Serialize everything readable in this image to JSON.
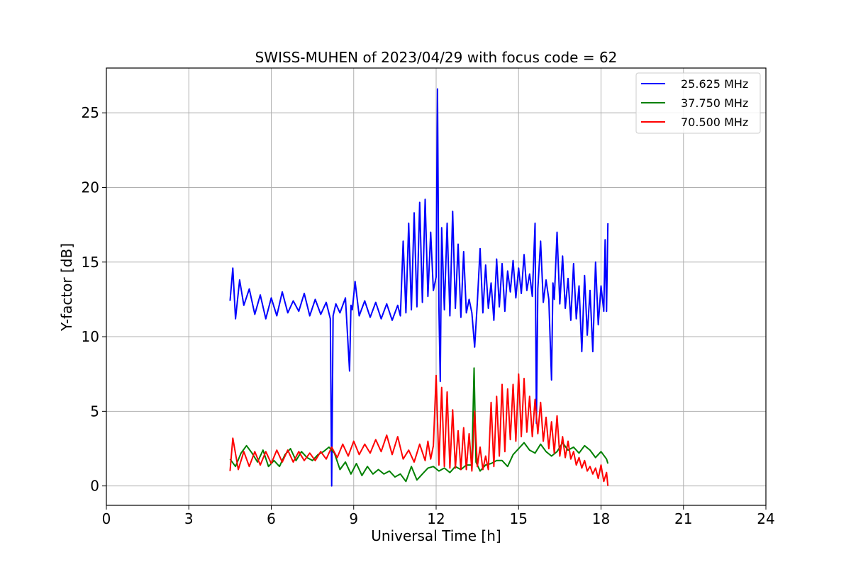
{
  "chart_data": {
    "type": "line",
    "title": "SWISS-MUHEN of 2023/04/29 with focus code = 62",
    "xlabel": "Universal Time [h]",
    "ylabel": "Y-factor [dB]",
    "xlim": [
      0,
      24
    ],
    "ylim": [
      -1.3,
      28
    ],
    "xticks": [
      0,
      3,
      6,
      9,
      12,
      15,
      18,
      21,
      24
    ],
    "yticks": [
      0,
      5,
      10,
      15,
      20,
      25
    ],
    "grid": true,
    "legend_position": "top-right",
    "series": [
      {
        "name": "25.625 MHz",
        "color": "#0000ff",
        "x": [
          4.5,
          4.6,
          4.7,
          4.85,
          5.0,
          5.2,
          5.4,
          5.6,
          5.8,
          6.0,
          6.2,
          6.4,
          6.6,
          6.8,
          7.0,
          7.2,
          7.4,
          7.6,
          7.8,
          8.0,
          8.15,
          8.2,
          8.25,
          8.35,
          8.5,
          8.7,
          8.85,
          8.9,
          8.95,
          9.05,
          9.2,
          9.4,
          9.6,
          9.8,
          10.0,
          10.2,
          10.4,
          10.6,
          10.7,
          10.8,
          10.9,
          11.0,
          11.1,
          11.2,
          11.3,
          11.4,
          11.5,
          11.6,
          11.7,
          11.8,
          11.9,
          12.0,
          12.05,
          12.1,
          12.15,
          12.2,
          12.3,
          12.4,
          12.5,
          12.6,
          12.7,
          12.8,
          12.9,
          13.0,
          13.1,
          13.2,
          13.3,
          13.4,
          13.5,
          13.6,
          13.7,
          13.8,
          13.9,
          14.0,
          14.1,
          14.2,
          14.3,
          14.4,
          14.5,
          14.6,
          14.7,
          14.8,
          14.9,
          15.0,
          15.1,
          15.2,
          15.3,
          15.4,
          15.5,
          15.6,
          15.65,
          15.7,
          15.8,
          15.9,
          16.0,
          16.1,
          16.2,
          16.25,
          16.3,
          16.4,
          16.5,
          16.6,
          16.7,
          16.8,
          16.9,
          17.0,
          17.1,
          17.2,
          17.3,
          17.4,
          17.5,
          17.6,
          17.7,
          17.8,
          17.9,
          18.0,
          18.1,
          18.15,
          18.2,
          18.25
        ],
        "y": [
          12.4,
          14.6,
          11.2,
          13.8,
          12.1,
          13.2,
          11.5,
          12.8,
          11.2,
          12.6,
          11.4,
          13.0,
          11.6,
          12.4,
          11.7,
          12.9,
          11.4,
          12.5,
          11.5,
          12.3,
          11.2,
          0.0,
          11.4,
          12.2,
          11.6,
          12.6,
          7.7,
          12.1,
          11.8,
          13.7,
          11.4,
          12.4,
          11.3,
          12.3,
          11.2,
          12.2,
          11.1,
          12.1,
          11.4,
          16.4,
          11.6,
          17.6,
          11.8,
          18.3,
          12.0,
          19.0,
          12.3,
          19.2,
          12.7,
          17.0,
          13.1,
          14.0,
          26.6,
          12.0,
          7.0,
          17.3,
          11.8,
          17.6,
          11.4,
          18.4,
          11.9,
          16.2,
          11.3,
          15.7,
          11.6,
          12.5,
          11.6,
          9.3,
          12.3,
          15.9,
          11.6,
          14.8,
          11.9,
          13.6,
          11.1,
          15.2,
          12.0,
          14.9,
          11.7,
          14.4,
          13.0,
          15.1,
          12.6,
          14.6,
          12.9,
          15.5,
          13.1,
          14.2,
          12.7,
          17.6,
          4.2,
          13.2,
          16.4,
          12.3,
          13.8,
          12.5,
          7.1,
          13.6,
          12.5,
          17.0,
          12.2,
          15.4,
          11.9,
          13.9,
          11.1,
          14.9,
          11.2,
          13.4,
          9.0,
          14.1,
          10.1,
          13.1,
          9.0,
          15.0,
          10.8,
          13.4,
          11.7,
          16.5,
          11.7,
          17.6
        ]
      },
      {
        "name": "37.750 MHz",
        "color": "#008000",
        "x": [
          4.5,
          4.7,
          4.9,
          5.1,
          5.3,
          5.5,
          5.7,
          5.9,
          6.1,
          6.3,
          6.5,
          6.7,
          6.9,
          7.1,
          7.3,
          7.5,
          7.7,
          7.9,
          8.1,
          8.3,
          8.5,
          8.7,
          8.9,
          9.1,
          9.3,
          9.5,
          9.7,
          9.9,
          10.1,
          10.3,
          10.5,
          10.7,
          10.9,
          11.1,
          11.3,
          11.5,
          11.7,
          11.9,
          12.1,
          12.3,
          12.5,
          12.7,
          12.9,
          13.1,
          13.3,
          13.38,
          13.45,
          13.6,
          13.8,
          14.0,
          14.2,
          14.4,
          14.6,
          14.8,
          15.0,
          15.2,
          15.4,
          15.6,
          15.8,
          16.0,
          16.2,
          16.4,
          16.6,
          16.8,
          17.0,
          17.2,
          17.4,
          17.6,
          17.8,
          18.0,
          18.2,
          18.25
        ],
        "y": [
          1.8,
          1.3,
          2.2,
          2.7,
          2.2,
          1.6,
          2.4,
          1.3,
          1.7,
          1.3,
          2.1,
          2.5,
          1.7,
          2.3,
          1.9,
          1.7,
          2.1,
          2.3,
          2.6,
          2.2,
          1.1,
          1.6,
          0.8,
          1.5,
          0.7,
          1.3,
          0.8,
          1.1,
          0.8,
          1.0,
          0.6,
          0.8,
          0.3,
          1.3,
          0.4,
          0.8,
          1.2,
          1.3,
          1.0,
          1.2,
          0.9,
          1.3,
          1.1,
          1.4,
          1.4,
          7.9,
          1.6,
          1.0,
          1.4,
          1.5,
          1.7,
          1.7,
          1.3,
          2.1,
          2.5,
          2.9,
          2.4,
          2.2,
          2.8,
          2.3,
          2.0,
          2.3,
          2.9,
          2.4,
          2.6,
          2.2,
          2.7,
          2.4,
          1.9,
          2.3,
          1.8,
          1.5
        ]
      },
      {
        "name": "70.500 MHz",
        "color": "#ff0000",
        "x": [
          4.5,
          4.6,
          4.8,
          5.0,
          5.2,
          5.4,
          5.6,
          5.8,
          6.0,
          6.2,
          6.4,
          6.6,
          6.8,
          7.0,
          7.2,
          7.4,
          7.6,
          7.8,
          8.0,
          8.2,
          8.4,
          8.6,
          8.8,
          9.0,
          9.2,
          9.4,
          9.6,
          9.8,
          10.0,
          10.2,
          10.4,
          10.6,
          10.8,
          11.0,
          11.2,
          11.4,
          11.6,
          11.7,
          11.8,
          11.9,
          12.0,
          12.1,
          12.2,
          12.3,
          12.4,
          12.5,
          12.6,
          12.7,
          12.8,
          12.9,
          13.0,
          13.1,
          13.2,
          13.3,
          13.4,
          13.5,
          13.6,
          13.7,
          13.8,
          13.9,
          14.0,
          14.1,
          14.2,
          14.3,
          14.4,
          14.5,
          14.6,
          14.7,
          14.8,
          14.9,
          15.0,
          15.1,
          15.2,
          15.3,
          15.4,
          15.5,
          15.6,
          15.7,
          15.8,
          15.9,
          16.0,
          16.1,
          16.2,
          16.3,
          16.4,
          16.5,
          16.6,
          16.7,
          16.8,
          16.9,
          17.0,
          17.1,
          17.2,
          17.3,
          17.4,
          17.5,
          17.6,
          17.7,
          17.8,
          17.9,
          18.0,
          18.1,
          18.2,
          18.25
        ],
        "y": [
          1.0,
          3.2,
          1.1,
          2.3,
          1.3,
          2.3,
          1.4,
          2.3,
          1.5,
          2.4,
          1.6,
          2.4,
          1.6,
          2.3,
          1.7,
          2.2,
          1.7,
          2.3,
          1.8,
          2.6,
          1.9,
          2.8,
          2.0,
          3.0,
          2.1,
          2.8,
          2.2,
          3.1,
          2.3,
          3.4,
          2.1,
          3.3,
          1.8,
          2.4,
          1.6,
          2.8,
          1.7,
          3.0,
          1.8,
          2.7,
          7.4,
          1.4,
          6.6,
          1.3,
          6.3,
          1.2,
          5.1,
          1.2,
          3.7,
          1.1,
          3.9,
          1.1,
          3.5,
          1.0,
          5.0,
          1.3,
          2.6,
          1.1,
          2.0,
          1.1,
          5.6,
          1.3,
          6.0,
          2.0,
          6.8,
          2.3,
          6.5,
          3.1,
          6.8,
          3.0,
          7.5,
          3.3,
          7.2,
          3.6,
          6.0,
          3.3,
          5.8,
          3.5,
          5.6,
          3.0,
          4.6,
          2.5,
          4.3,
          2.2,
          4.7,
          2.0,
          3.3,
          1.9,
          3.0,
          1.8,
          2.3,
          1.4,
          1.9,
          1.2,
          1.7,
          1.0,
          1.3,
          0.8,
          1.2,
          0.5,
          1.4,
          0.3,
          0.9,
          0.0
        ]
      }
    ]
  }
}
